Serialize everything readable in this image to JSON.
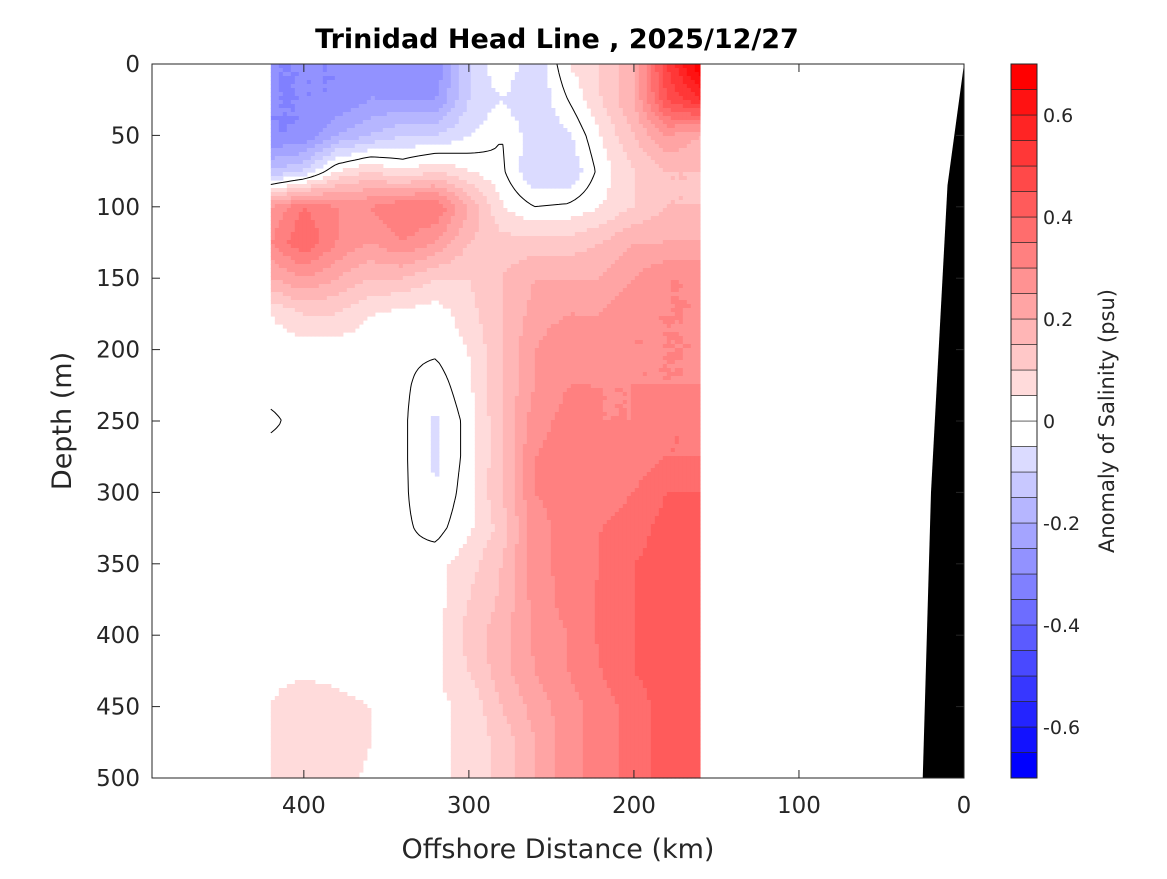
{
  "chart_data": {
    "type": "heatmap",
    "subtype": "filled-contour",
    "title": "Trinidad Head Line , 2025/12/27",
    "xlabel": "Offshore Distance (km)",
    "ylabel": "Depth (m)",
    "colorbar_label": "Anomaly of Salinity (psu)",
    "xlim": [
      492,
      0
    ],
    "x_reversed": true,
    "ylim": [
      500,
      0
    ],
    "y_reversed": true,
    "xticks": [
      400,
      300,
      200,
      100,
      0
    ],
    "yticks": [
      0,
      50,
      100,
      150,
      200,
      250,
      300,
      350,
      400,
      450,
      500
    ],
    "clim": [
      -0.7,
      0.7
    ],
    "contour_step": 0.05,
    "colorbar_ticks": [
      "-0.6",
      "-0.4",
      "-0.2",
      "0",
      "0.2",
      "0.4",
      "0.6"
    ],
    "colormap": {
      "negative": "#0000ff",
      "zero": "#ffffff",
      "positive": "#ff0000"
    },
    "highlighted_contour": 0,
    "distance_km": [
      420,
      400,
      380,
      360,
      340,
      320,
      300,
      280,
      260,
      240,
      220,
      200,
      180,
      160
    ],
    "depth_m": [
      0,
      25,
      50,
      75,
      100,
      125,
      150,
      175,
      200,
      225,
      250,
      275,
      300,
      325,
      350,
      375,
      400,
      425,
      450,
      475,
      500
    ],
    "values": [
      [
        -0.3,
        -0.3,
        -0.3,
        -0.25,
        -0.3,
        -0.3,
        -0.1,
        0.0,
        -0.1,
        0.05,
        0.1,
        0.2,
        0.5,
        0.7
      ],
      [
        -0.3,
        -0.3,
        -0.3,
        -0.25,
        -0.25,
        -0.25,
        -0.1,
        -0.05,
        -0.1,
        0.0,
        0.1,
        0.2,
        0.45,
        0.55
      ],
      [
        -0.3,
        -0.3,
        -0.2,
        -0.15,
        -0.1,
        -0.1,
        -0.05,
        0.0,
        -0.08,
        -0.06,
        0.05,
        0.15,
        0.25,
        0.2
      ],
      [
        -0.15,
        -0.1,
        0.05,
        0.1,
        0.05,
        0.1,
        0.05,
        0.01,
        -0.1,
        -0.1,
        0.02,
        0.1,
        0.15,
        0.15
      ],
      [
        0.25,
        0.35,
        0.3,
        0.3,
        0.35,
        0.35,
        0.2,
        0.05,
        0.0,
        0.01,
        0.05,
        0.1,
        0.15,
        0.15
      ],
      [
        0.3,
        0.4,
        0.3,
        0.25,
        0.3,
        0.25,
        0.15,
        0.12,
        0.12,
        0.12,
        0.15,
        0.2,
        0.2,
        0.2
      ],
      [
        0.2,
        0.25,
        0.2,
        0.15,
        0.15,
        0.1,
        0.1,
        0.15,
        0.2,
        0.2,
        0.2,
        0.25,
        0.3,
        0.3
      ],
      [
        0.05,
        0.1,
        0.1,
        0.05,
        0.03,
        0.02,
        0.08,
        0.15,
        0.22,
        0.25,
        0.25,
        0.3,
        0.3,
        0.3
      ],
      [
        0.02,
        0.02,
        0.02,
        0.02,
        0.01,
        0.01,
        0.05,
        0.15,
        0.25,
        0.3,
        0.28,
        0.3,
        0.3,
        0.3
      ],
      [
        0.02,
        0.02,
        0.02,
        0.02,
        0.01,
        -0.03,
        0.04,
        0.15,
        0.25,
        0.3,
        0.3,
        0.3,
        0.3,
        0.3
      ],
      [
        -0.01,
        0.02,
        0.02,
        0.02,
        0.01,
        -0.06,
        0.02,
        0.15,
        0.28,
        0.32,
        0.3,
        0.3,
        0.35,
        0.35
      ],
      [
        0.02,
        0.02,
        0.02,
        0.02,
        0.01,
        -0.06,
        0.02,
        0.15,
        0.3,
        0.32,
        0.3,
        0.32,
        0.35,
        0.35
      ],
      [
        0.02,
        0.02,
        0.02,
        0.02,
        0.01,
        -0.05,
        0.03,
        0.15,
        0.3,
        0.32,
        0.32,
        0.35,
        0.4,
        0.4
      ],
      [
        0.02,
        0.02,
        0.02,
        0.02,
        0.01,
        -0.02,
        0.04,
        0.12,
        0.28,
        0.32,
        0.35,
        0.38,
        0.42,
        0.42
      ],
      [
        0.02,
        0.02,
        0.02,
        0.02,
        0.01,
        0.03,
        0.08,
        0.15,
        0.28,
        0.32,
        0.35,
        0.4,
        0.42,
        0.42
      ],
      [
        0.02,
        0.02,
        0.02,
        0.02,
        0.01,
        0.03,
        0.1,
        0.16,
        0.27,
        0.32,
        0.36,
        0.4,
        0.42,
        0.42
      ],
      [
        0.03,
        0.03,
        0.03,
        0.02,
        0.01,
        0.03,
        0.12,
        0.18,
        0.26,
        0.3,
        0.36,
        0.4,
        0.42,
        0.42
      ],
      [
        0.04,
        0.04,
        0.04,
        0.03,
        0.01,
        0.04,
        0.1,
        0.18,
        0.25,
        0.3,
        0.35,
        0.4,
        0.42,
        0.42
      ],
      [
        0.05,
        0.08,
        0.06,
        0.05,
        0.02,
        0.04,
        0.06,
        0.15,
        0.22,
        0.28,
        0.32,
        0.38,
        0.42,
        0.42
      ],
      [
        0.06,
        0.08,
        0.08,
        0.05,
        0.04,
        0.04,
        0.06,
        0.12,
        0.2,
        0.28,
        0.32,
        0.38,
        0.42,
        0.42
      ],
      [
        0.06,
        0.08,
        0.07,
        0.04,
        0.04,
        0.04,
        0.06,
        0.12,
        0.2,
        0.28,
        0.32,
        0.38,
        0.42,
        0.42
      ]
    ],
    "bathymetry": [
      [
        0,
        0
      ],
      [
        10,
        85
      ],
      [
        20,
        300
      ],
      [
        25,
        500
      ]
    ],
    "grid": false
  }
}
